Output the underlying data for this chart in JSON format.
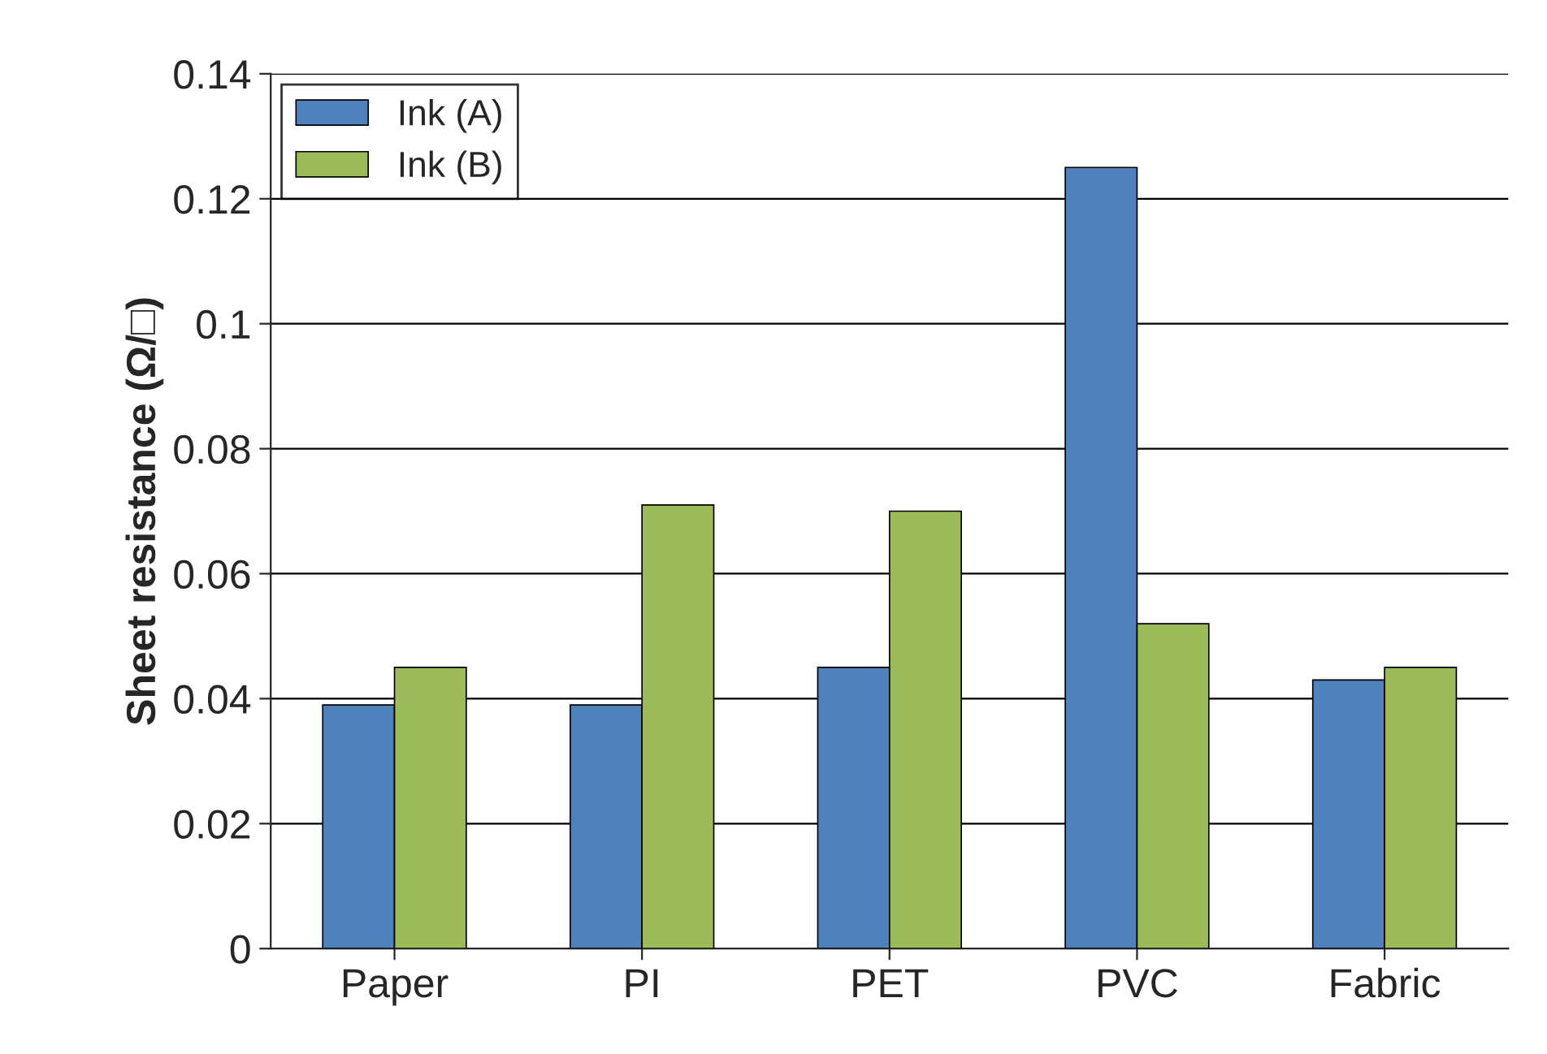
{
  "chart_data": {
    "type": "bar",
    "ylabel": "Sheet resistance (Ω/□)",
    "categories": [
      "Paper",
      "PI",
      "PET",
      "PVC",
      "Fabric"
    ],
    "series": [
      {
        "name": "Ink (A)",
        "color": "#4f81bd",
        "values": [
          0.039,
          0.039,
          0.045,
          0.125,
          0.043
        ]
      },
      {
        "name": "Ink (B)",
        "color": "#9bbb59",
        "values": [
          0.045,
          0.071,
          0.07,
          0.052,
          0.045
        ]
      }
    ],
    "ylim": [
      0,
      0.14
    ],
    "yticks": [
      0,
      0.02,
      0.04,
      0.06,
      0.08,
      0.1,
      0.12,
      0.14
    ],
    "grid": "y",
    "legend": "top left"
  }
}
